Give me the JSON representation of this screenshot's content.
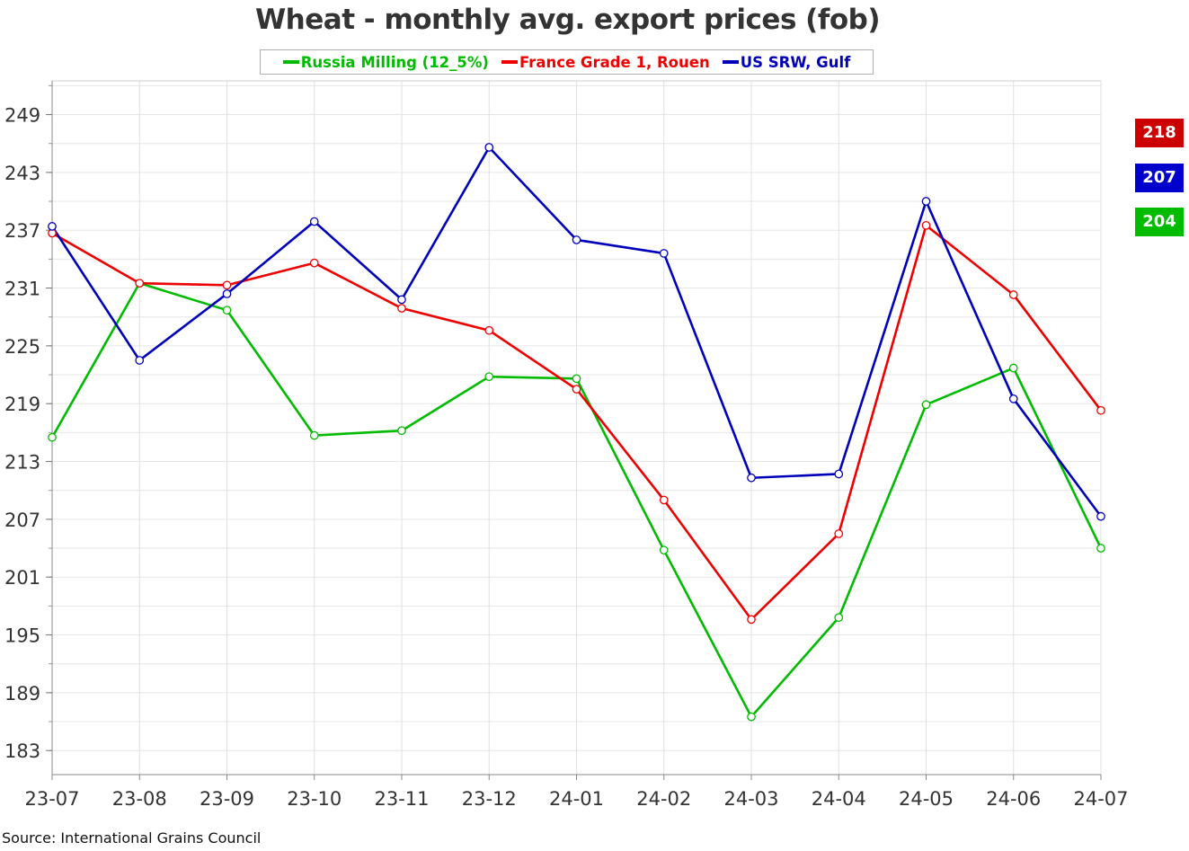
{
  "chart_data": {
    "type": "line",
    "title": "Wheat - monthly avg. export prices (fob)",
    "categories": [
      "23-07",
      "23-08",
      "23-09",
      "23-10",
      "23-11",
      "23-12",
      "24-01",
      "24-02",
      "24-03",
      "24-04",
      "24-05",
      "24-06",
      "24-07"
    ],
    "y_ticks": [
      "249",
      "243",
      "237",
      "231",
      "225",
      "219",
      "213",
      "207",
      "201",
      "195",
      "189",
      "183"
    ],
    "ylim": [
      180.5,
      252.5
    ],
    "grid": true,
    "legend_position": "top",
    "series": [
      {
        "name": "Russia Milling (12_5%)",
        "color": "#00bb00",
        "values": [
          215.5,
          231.5,
          228.7,
          215.7,
          216.2,
          221.8,
          221.6,
          203.8,
          186.5,
          196.8,
          218.9,
          222.7,
          204.0
        ]
      },
      {
        "name": "France Grade 1, Rouen",
        "color": "#ee0000",
        "values": [
          236.7,
          231.5,
          231.3,
          233.6,
          228.9,
          226.6,
          220.5,
          209.0,
          196.6,
          205.5,
          237.5,
          230.3,
          218.3
        ]
      },
      {
        "name": "US SRW, Gulf",
        "color": "#0000bb",
        "values": [
          237.4,
          223.5,
          230.4,
          237.9,
          229.8,
          245.6,
          236.0,
          234.6,
          211.3,
          211.7,
          240.0,
          219.5,
          207.3
        ]
      }
    ],
    "end_labels": [
      {
        "value": "218",
        "color": "#cc0000"
      },
      {
        "value": "207",
        "color": "#0000cc"
      },
      {
        "value": "204",
        "color": "#00bb00"
      }
    ],
    "source": "Source: International Grains Council"
  }
}
